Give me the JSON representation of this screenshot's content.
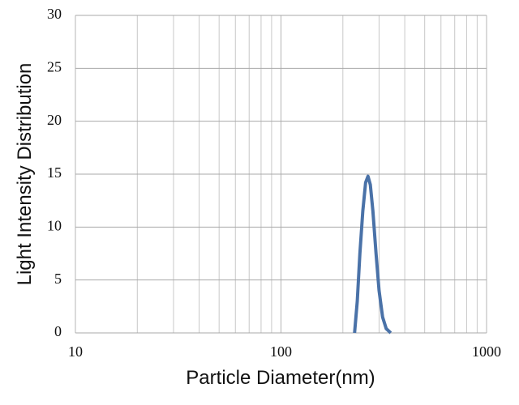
{
  "chart_data": {
    "type": "line",
    "x_label": "Particle Diameter(nm)",
    "y_label": "Light Intensity Distribution",
    "x_log": true,
    "xlim": [
      10,
      1000
    ],
    "xticks": [
      10,
      100,
      1000
    ],
    "x_minor_gridlines": [
      20,
      30,
      40,
      50,
      60,
      70,
      80,
      90,
      200,
      300,
      400,
      500,
      600,
      700,
      800,
      900
    ],
    "ylim": [
      0,
      30
    ],
    "yticks": [
      0,
      5,
      10,
      15,
      20,
      25,
      30
    ],
    "grid": true,
    "series": [
      {
        "color": "#4a72a8",
        "x": [
          228,
          235,
          242,
          250,
          258,
          265,
          272,
          280,
          290,
          300,
          312,
          325,
          342
        ],
        "values": [
          0,
          3,
          7.5,
          11.5,
          14.2,
          14.8,
          14,
          11.5,
          7.5,
          4,
          1.5,
          0.4,
          0
        ]
      }
    ]
  }
}
